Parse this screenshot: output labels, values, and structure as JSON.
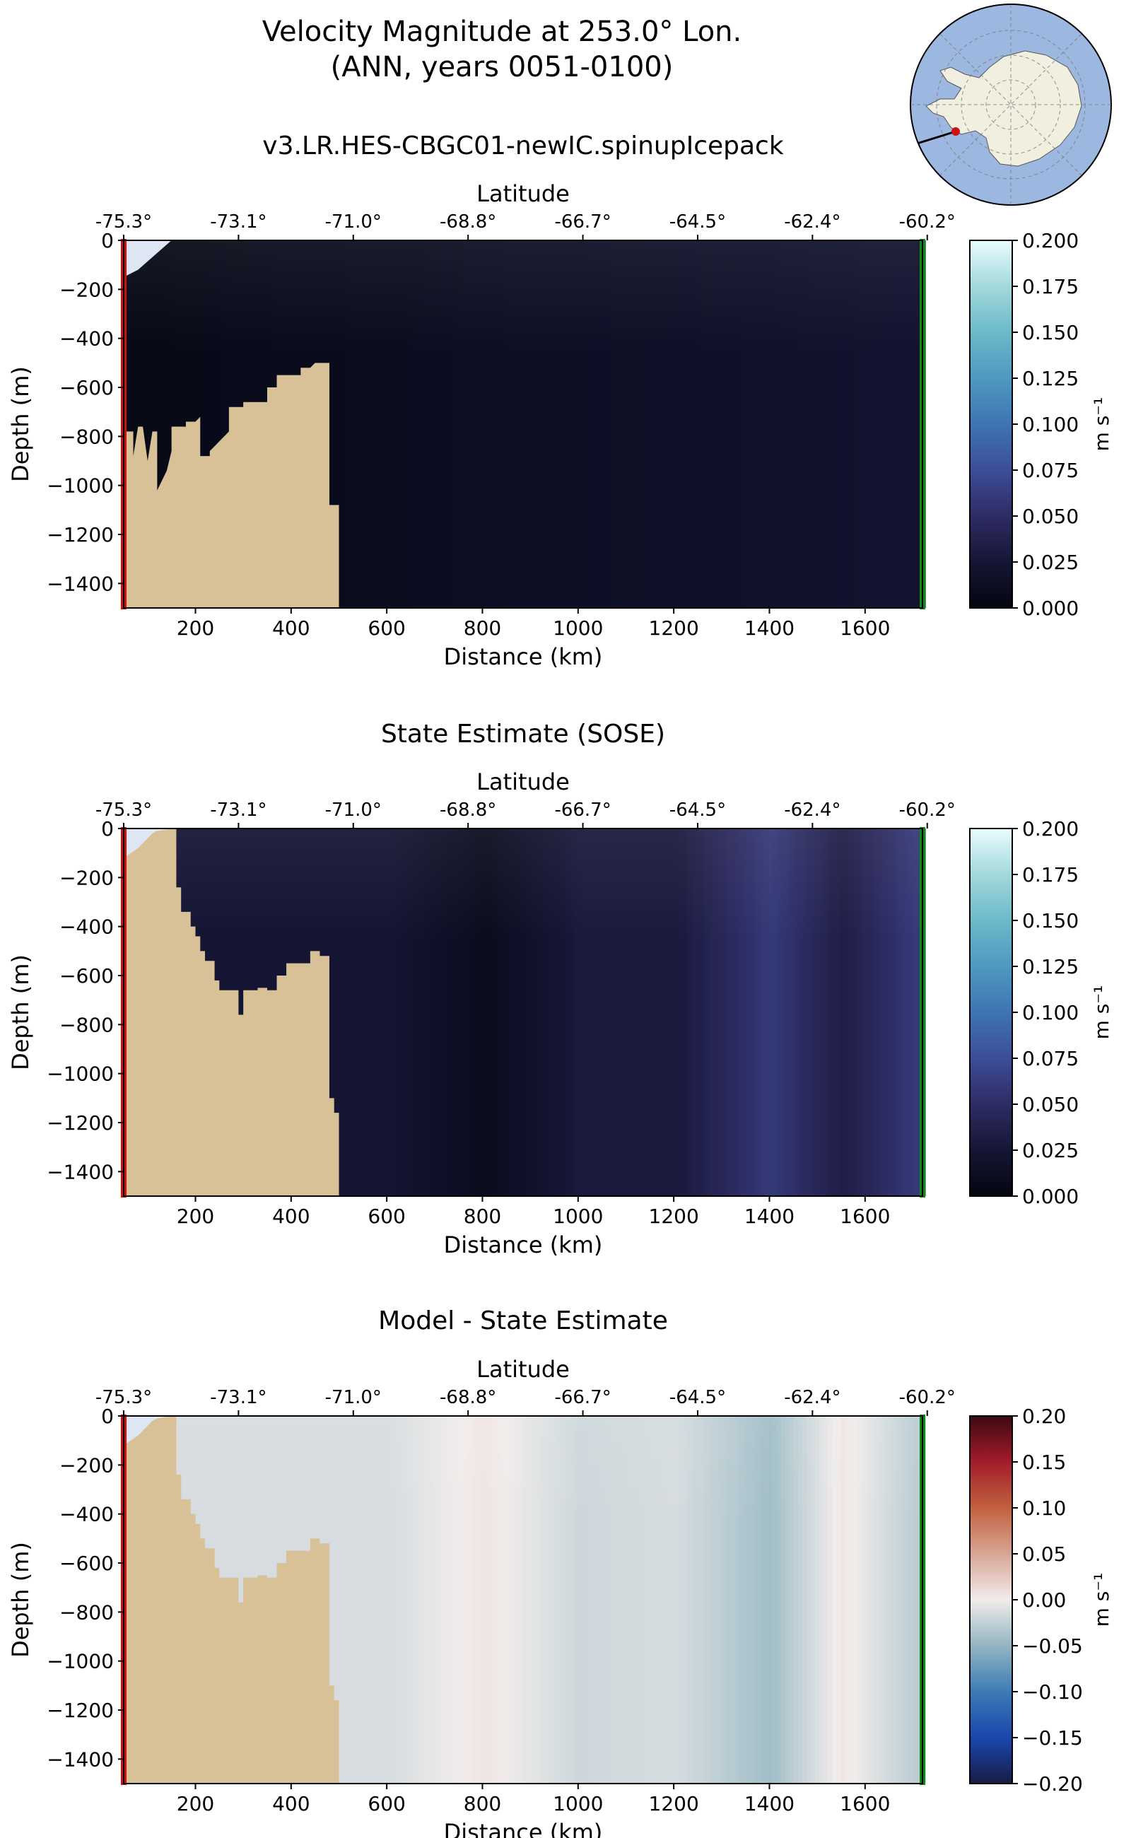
{
  "figure": {
    "title_line1": "Velocity Magnitude at 253.0° Lon.",
    "title_line2": "(ANN, years 0051-0100)",
    "inset_map": "antarctica-polar-map-icon"
  },
  "colors": {
    "land": "#d8c097",
    "ice": "#dde6f2",
    "start_marker": "#cc1111",
    "end_marker": "#118811",
    "map_ocean": "#9db8e0",
    "map_land": "#f1efdf"
  },
  "chart_data": [
    {
      "type": "heatmap",
      "title": "v3.LR.HES-CBGC01-newIC.spinupIcepack",
      "xlabel": "Distance (km)",
      "ylabel": "Depth (m)",
      "top_xlabel": "Latitude",
      "xlim": [
        50,
        1720
      ],
      "ylim": [
        -1500,
        0
      ],
      "x_ticks": [
        200,
        400,
        600,
        800,
        1000,
        1200,
        1400,
        1600
      ],
      "y_ticks": [
        0,
        -200,
        -400,
        -600,
        -800,
        -1000,
        -1200,
        -1400
      ],
      "latitude_ticks": [
        "-75.3°",
        "-73.1°",
        "-71.0°",
        "-68.8°",
        "-66.7°",
        "-64.5°",
        "-62.4°",
        "-60.2°"
      ],
      "latitude_tick_distances_km": [
        50,
        290,
        530,
        770,
        1010,
        1250,
        1490,
        1730
      ],
      "colormap": "ice",
      "colorbar_label": "m s⁻¹",
      "colorbar_ticks": [
        "0.200",
        "0.175",
        "0.150",
        "0.125",
        "0.100",
        "0.075",
        "0.050",
        "0.025",
        "0.000"
      ],
      "clim": [
        0,
        0.2
      ],
      "approx_column_values_ms": {
        "distance_km": [
          100,
          300,
          500,
          700,
          900,
          1100,
          1300,
          1500,
          1650
        ],
        "velocity": [
          0.005,
          0.008,
          0.01,
          0.012,
          0.015,
          0.016,
          0.018,
          0.02,
          0.022
        ]
      },
      "bathymetry": [
        [
          50,
          -780
        ],
        [
          70,
          -780
        ],
        [
          70,
          -880
        ],
        [
          80,
          -760
        ],
        [
          90,
          -760
        ],
        [
          100,
          -900
        ],
        [
          110,
          -780
        ],
        [
          120,
          -780
        ],
        [
          120,
          -1020
        ],
        [
          140,
          -940
        ],
        [
          150,
          -860
        ],
        [
          150,
          -760
        ],
        [
          180,
          -760
        ],
        [
          180,
          -740
        ],
        [
          200,
          -740
        ],
        [
          210,
          -720
        ],
        [
          210,
          -880
        ],
        [
          230,
          -880
        ],
        [
          230,
          -860
        ],
        [
          260,
          -800
        ],
        [
          270,
          -780
        ],
        [
          270,
          -680
        ],
        [
          300,
          -680
        ],
        [
          300,
          -660
        ],
        [
          350,
          -660
        ],
        [
          350,
          -600
        ],
        [
          370,
          -600
        ],
        [
          370,
          -550
        ],
        [
          420,
          -550
        ],
        [
          420,
          -520
        ],
        [
          440,
          -520
        ],
        [
          450,
          -500
        ],
        [
          480,
          -500
        ],
        [
          480,
          -1080
        ],
        [
          500,
          -1080
        ],
        [
          500,
          -1500
        ]
      ]
    },
    {
      "type": "heatmap",
      "title": "State Estimate (SOSE)",
      "xlabel": "Distance (km)",
      "ylabel": "Depth (m)",
      "top_xlabel": "Latitude",
      "xlim": [
        50,
        1720
      ],
      "ylim": [
        -1500,
        0
      ],
      "x_ticks": [
        200,
        400,
        600,
        800,
        1000,
        1200,
        1400,
        1600
      ],
      "y_ticks": [
        0,
        -200,
        -400,
        -600,
        -800,
        -1000,
        -1200,
        -1400
      ],
      "latitude_ticks": [
        "-75.3°",
        "-73.1°",
        "-71.0°",
        "-68.8°",
        "-66.7°",
        "-64.5°",
        "-62.4°",
        "-60.2°"
      ],
      "latitude_tick_distances_km": [
        50,
        290,
        530,
        770,
        1010,
        1250,
        1490,
        1730
      ],
      "colormap": "ice",
      "colorbar_label": "m s⁻¹",
      "colorbar_ticks": [
        "0.200",
        "0.175",
        "0.150",
        "0.125",
        "0.100",
        "0.075",
        "0.050",
        "0.025",
        "0.000"
      ],
      "clim": [
        0,
        0.2
      ],
      "approx_column_values_ms": {
        "distance_km": [
          600,
          800,
          1000,
          1200,
          1400,
          1550,
          1700
        ],
        "velocity": [
          0.025,
          0.01,
          0.03,
          0.03,
          0.06,
          0.035,
          0.06
        ]
      },
      "bathymetry": [
        [
          50,
          -1500
        ],
        [
          50,
          -120
        ],
        [
          80,
          -80
        ],
        [
          100,
          -40
        ],
        [
          110,
          -20
        ],
        [
          120,
          -10
        ],
        [
          150,
          0
        ],
        [
          160,
          0
        ],
        [
          160,
          -240
        ],
        [
          170,
          -240
        ],
        [
          170,
          -340
        ],
        [
          190,
          -340
        ],
        [
          190,
          -400
        ],
        [
          200,
          -400
        ],
        [
          200,
          -440
        ],
        [
          210,
          -440
        ],
        [
          210,
          -500
        ],
        [
          220,
          -500
        ],
        [
          220,
          -540
        ],
        [
          240,
          -540
        ],
        [
          240,
          -620
        ],
        [
          250,
          -620
        ],
        [
          250,
          -660
        ],
        [
          290,
          -660
        ],
        [
          290,
          -760
        ],
        [
          300,
          -760
        ],
        [
          300,
          -660
        ],
        [
          330,
          -660
        ],
        [
          330,
          -650
        ],
        [
          350,
          -650
        ],
        [
          350,
          -660
        ],
        [
          370,
          -660
        ],
        [
          370,
          -600
        ],
        [
          390,
          -600
        ],
        [
          390,
          -550
        ],
        [
          440,
          -550
        ],
        [
          440,
          -500
        ],
        [
          460,
          -500
        ],
        [
          460,
          -520
        ],
        [
          480,
          -520
        ],
        [
          480,
          -1100
        ],
        [
          490,
          -1100
        ],
        [
          490,
          -1160
        ],
        [
          500,
          -1160
        ],
        [
          500,
          -1500
        ]
      ]
    },
    {
      "type": "heatmap",
      "title": "Model - State Estimate",
      "xlabel": "Distance (km)",
      "ylabel": "Depth (m)",
      "top_xlabel": "Latitude",
      "xlim": [
        50,
        1720
      ],
      "ylim": [
        -1500,
        0
      ],
      "x_ticks": [
        200,
        400,
        600,
        800,
        1000,
        1200,
        1400,
        1600
      ],
      "y_ticks": [
        0,
        -200,
        -400,
        -600,
        -800,
        -1000,
        -1200,
        -1400
      ],
      "latitude_ticks": [
        "-75.3°",
        "-73.1°",
        "-71.0°",
        "-68.8°",
        "-66.7°",
        "-64.5°",
        "-62.4°",
        "-60.2°"
      ],
      "latitude_tick_distances_km": [
        50,
        290,
        530,
        770,
        1010,
        1250,
        1490,
        1730
      ],
      "colormap": "balance",
      "colorbar_label": "m s⁻¹",
      "colorbar_ticks": [
        "0.20",
        "0.15",
        "0.10",
        "0.05",
        "0.00",
        "−0.05",
        "−0.10",
        "−0.15",
        "−0.20"
      ],
      "clim": [
        -0.2,
        0.2
      ],
      "approx_column_values_ms": {
        "distance_km": [
          600,
          800,
          1000,
          1200,
          1400,
          1550,
          1700
        ],
        "velocity": [
          -0.015,
          0.005,
          -0.02,
          -0.015,
          -0.045,
          0.005,
          -0.03
        ]
      },
      "bathymetry": [
        [
          50,
          -1500
        ],
        [
          50,
          -120
        ],
        [
          80,
          -80
        ],
        [
          100,
          -40
        ],
        [
          110,
          -20
        ],
        [
          120,
          -10
        ],
        [
          150,
          0
        ],
        [
          160,
          0
        ],
        [
          160,
          -240
        ],
        [
          170,
          -240
        ],
        [
          170,
          -340
        ],
        [
          190,
          -340
        ],
        [
          190,
          -400
        ],
        [
          200,
          -400
        ],
        [
          200,
          -440
        ],
        [
          210,
          -440
        ],
        [
          210,
          -500
        ],
        [
          220,
          -500
        ],
        [
          220,
          -540
        ],
        [
          240,
          -540
        ],
        [
          240,
          -620
        ],
        [
          250,
          -620
        ],
        [
          250,
          -660
        ],
        [
          290,
          -660
        ],
        [
          290,
          -760
        ],
        [
          300,
          -760
        ],
        [
          300,
          -660
        ],
        [
          330,
          -660
        ],
        [
          330,
          -650
        ],
        [
          350,
          -650
        ],
        [
          350,
          -660
        ],
        [
          370,
          -660
        ],
        [
          370,
          -600
        ],
        [
          390,
          -600
        ],
        [
          390,
          -550
        ],
        [
          440,
          -550
        ],
        [
          440,
          -500
        ],
        [
          460,
          -500
        ],
        [
          460,
          -520
        ],
        [
          480,
          -520
        ],
        [
          480,
          -1100
        ],
        [
          490,
          -1100
        ],
        [
          490,
          -1160
        ],
        [
          500,
          -1160
        ],
        [
          500,
          -1500
        ]
      ]
    }
  ]
}
